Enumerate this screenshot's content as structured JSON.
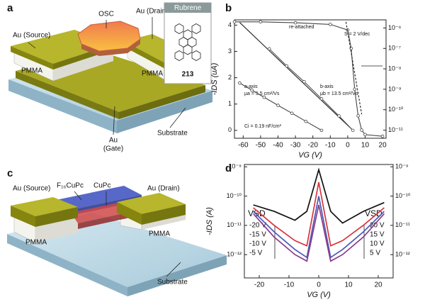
{
  "schematic_a": {
    "panel": "a",
    "source": "Au (Source)",
    "osc": "OSC",
    "drain": "Au (Drain)",
    "pmma": [
      "PMMA",
      "PMMA"
    ],
    "gate": [
      "Au",
      "(Gate)"
    ],
    "substrate": "Substrate",
    "molecule": {
      "name": "Rubrene",
      "number": "213"
    }
  },
  "schematic_c": {
    "panel": "c",
    "source": "Au (Source)",
    "semiconductors": [
      "F₁₆CuPc",
      "CuPc"
    ],
    "drain": "Au (Drain)",
    "pmma": [
      "PMMA",
      "PMMA"
    ],
    "substrate": "Substrate"
  },
  "chart_data": [
    {
      "type": "line",
      "panel": "b",
      "xlabel": "VG (V)",
      "ylabel": "-IDS (uA)",
      "xlim": [
        -65,
        22
      ],
      "xticks": [
        -60,
        -50,
        -40,
        -30,
        -20,
        -10,
        0,
        10,
        20
      ],
      "ylim": [
        -0.3,
        4.2
      ],
      "yticks": [
        0,
        1,
        2,
        3,
        4
      ],
      "yscale": "linear",
      "y2lim": [
        4e-12,
        2.5e-06
      ],
      "y2scale": "log",
      "y2ticks": [
        {
          "value": 1e-11,
          "label": "10⁻¹¹"
        },
        {
          "value": 1e-10,
          "label": "10⁻¹⁰"
        },
        {
          "value": 1e-09,
          "label": "10⁻⁹"
        },
        {
          "value": 1e-08,
          "label": "10⁻⁸"
        },
        {
          "value": 1e-07,
          "label": "10⁻⁷"
        },
        {
          "value": 1e-06,
          "label": "10⁻⁶"
        }
      ],
      "annotations": [
        "re-attached",
        "S = 2 V/dec",
        "a-axis",
        "μa = 5.5 cm²/Vs",
        "b-axis",
        "μb = 13.5 cm²/Vs",
        "Ci = 0.19 nF/cm²"
      ],
      "series": [
        {
          "color": "#444444",
          "marker": "circle",
          "x": [
            -62,
            -55,
            -48,
            -40,
            -32,
            -24,
            -15
          ],
          "values": [
            1.8,
            1.53,
            1.26,
            0.95,
            0.65,
            0.34,
            0
          ]
        },
        {
          "color": "#222222",
          "x": [
            -62,
            -40,
            -20,
            0,
            3
          ],
          "values": [
            4.1,
            2.71,
            1.45,
            0.19,
            0
          ]
        },
        {
          "color": "#555555",
          "marker": "circle",
          "x": [
            -45,
            -35,
            -25,
            -15,
            -5,
            3
          ],
          "values": [
            3.1,
            2.45,
            1.85,
            1.2,
            0.55,
            0
          ]
        },
        {
          "color": "#444444",
          "marker": "circle",
          "axis": "y2",
          "x": [
            -65,
            -50,
            -30,
            -10,
            0,
            2,
            4,
            6,
            8,
            10,
            20
          ],
          "values": [
            2e-06,
            2e-06,
            1.8e-06,
            1.5e-06,
            8e-07,
            1e-07,
            1e-09,
            5e-11,
            1e-11,
            6e-12,
            5e-12
          ]
        },
        {
          "color": "#222222",
          "dash": true,
          "axis": "y2",
          "x": [
            -1,
            8
          ],
          "values": [
            2e-06,
            6e-11
          ]
        }
      ]
    },
    {
      "type": "line",
      "panel": "d",
      "xlabel": "VG (V)",
      "ylabel": "-IDS (A)",
      "xlim": [
        -25,
        25
      ],
      "xticks": [
        -20,
        -10,
        0,
        10,
        20
      ],
      "ylim": [
        1.6e-13,
        1.2e-09
      ],
      "yscale": "log",
      "yticks": [
        {
          "value": 1e-12,
          "label": "10⁻¹²"
        },
        {
          "value": 1e-11,
          "label": "10⁻¹¹"
        },
        {
          "value": 1e-10,
          "label": "10⁻¹⁰"
        },
        {
          "value": 1e-09,
          "label": "10⁻⁹"
        }
      ],
      "y2lim": [
        1.6e-13,
        1.2e-09
      ],
      "y2scale": "log",
      "y2ticks": [
        {
          "value": 1e-12,
          "label": "10⁻¹²"
        },
        {
          "value": 1e-11,
          "label": "10⁻¹¹"
        },
        {
          "value": 1e-10,
          "label": "10⁻¹⁰"
        },
        {
          "value": 1e-09,
          "label": "10⁻⁹"
        }
      ],
      "vsd_left": {
        "title": "VSD",
        "labels": [
          "-20 V",
          "-15 V",
          "-10 V",
          "-5 V"
        ]
      },
      "vsd_right": {
        "title": "VSD",
        "labels": [
          "20 V",
          "15 V",
          "10 V",
          "5 V"
        ]
      },
      "series": [
        {
          "color": "#111111",
          "x": [
            -22,
            -15,
            -8,
            -4,
            0,
            4,
            8,
            15,
            22
          ],
          "values": [
            5e-11,
            3e-11,
            1.5e-11,
            3e-11,
            8e-10,
            3e-11,
            1.2e-11,
            3e-11,
            6e-11
          ]
        },
        {
          "color": "#d8343c",
          "x": [
            -22,
            -15,
            -8,
            -4,
            0,
            4,
            8,
            15,
            22
          ],
          "values": [
            4e-11,
            1e-11,
            3e-12,
            2e-12,
            3e-10,
            2e-12,
            3e-12,
            1e-11,
            4e-11
          ]
        },
        {
          "color": "#4a5ab8",
          "x": [
            -22,
            -15,
            -8,
            -4,
            0,
            4,
            8,
            15,
            22
          ],
          "values": [
            3e-11,
            6e-12,
            1.5e-12,
            8e-13,
            1e-10,
            8e-13,
            1.5e-12,
            6e-12,
            3e-11
          ]
        },
        {
          "color": "#8a3a8a",
          "x": [
            -22,
            -15,
            -8,
            -4,
            0,
            4,
            8,
            15,
            22
          ],
          "values": [
            2.5e-11,
            4e-12,
            1e-12,
            6e-13,
            5e-11,
            6e-13,
            1e-12,
            4e-12,
            2.5e-11
          ]
        }
      ]
    }
  ]
}
